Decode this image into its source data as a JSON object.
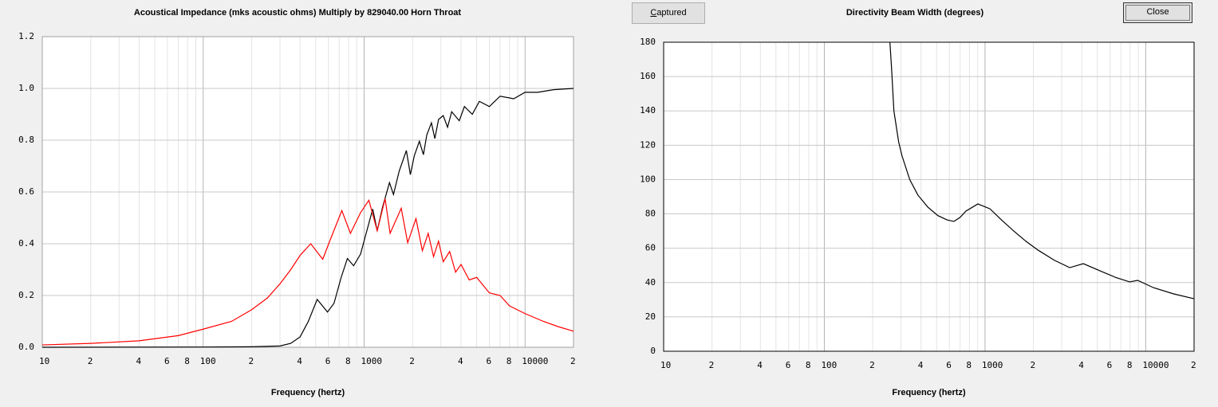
{
  "chart_data": [
    {
      "type": "line",
      "title": "Acoustical Impedance (mks acoustic ohms)   Multiply by 829040.00   Horn Throat",
      "xlabel": "Frequency (hertz)",
      "xscale": "log",
      "xlim": [
        10,
        20000
      ],
      "ylim": [
        0,
        1.2
      ],
      "grid": true,
      "xticks": [
        10,
        {
          "value": 20,
          "label": "2"
        },
        {
          "value": 40,
          "label": "4"
        },
        {
          "value": 60,
          "label": "6"
        },
        {
          "value": 80,
          "label": "8"
        },
        100,
        {
          "value": 200,
          "label": "2"
        },
        {
          "value": 400,
          "label": "4"
        },
        {
          "value": 600,
          "label": "6"
        },
        {
          "value": 800,
          "label": "8"
        },
        1000,
        {
          "value": 2000,
          "label": "2"
        },
        {
          "value": 4000,
          "label": "4"
        },
        {
          "value": 6000,
          "label": "6"
        },
        {
          "value": 8000,
          "label": "8"
        },
        10000,
        {
          "value": 20000,
          "label": "2"
        }
      ],
      "xminor": [
        30,
        50,
        70,
        90,
        300,
        500,
        700,
        900,
        3000,
        5000,
        7000,
        9000
      ],
      "yticks": [
        {
          "value": 0,
          "label": "0.0"
        },
        0.2,
        0.4,
        0.6,
        0.8,
        {
          "value": 1,
          "label": "1.0"
        },
        1.2
      ],
      "series": [
        {
          "color": "#000000",
          "x": [
            10,
            100,
            200,
            300,
            350,
            400,
            450,
            511,
            592,
            650,
            720,
            787,
            860,
            950,
            1050,
            1131,
            1206,
            1300,
            1437,
            1522,
            1650,
            1830,
            1938,
            2050,
            2205,
            2336,
            2450,
            2620,
            2750,
            2900,
            3100,
            3300,
            3500,
            3900,
            4200,
            4700,
            5200,
            6000,
            7000,
            8500,
            10000,
            12000,
            15000,
            20000
          ],
          "values": [
            0,
            0.001,
            0.002,
            0.005,
            0.015,
            0.04,
            0.1,
            0.185,
            0.136,
            0.17,
            0.27,
            0.343,
            0.315,
            0.36,
            0.46,
            0.534,
            0.45,
            0.54,
            0.636,
            0.59,
            0.68,
            0.76,
            0.667,
            0.74,
            0.796,
            0.744,
            0.82,
            0.867,
            0.806,
            0.88,
            0.895,
            0.85,
            0.91,
            0.875,
            0.93,
            0.9,
            0.95,
            0.93,
            0.97,
            0.96,
            0.985,
            0.985,
            0.995,
            1.0
          ]
        },
        {
          "color": "#ff0000",
          "x": [
            10,
            20,
            40,
            70,
            100,
            150,
            200,
            250,
            300,
            350,
            400,
            466,
            553,
            620,
            727,
            822,
            950,
            1070,
            1206,
            1350,
            1450,
            1700,
            1865,
            2100,
            2300,
            2500,
            2700,
            2900,
            3100,
            3400,
            3700,
            4000,
            4500,
            5000,
            6000,
            7000,
            8000,
            10000,
            13000,
            16000,
            20000
          ],
          "values": [
            0.009,
            0.015,
            0.025,
            0.045,
            0.07,
            0.1,
            0.145,
            0.19,
            0.245,
            0.3,
            0.355,
            0.4,
            0.34,
            0.42,
            0.528,
            0.44,
            0.52,
            0.568,
            0.45,
            0.574,
            0.44,
            0.537,
            0.404,
            0.497,
            0.373,
            0.44,
            0.35,
            0.41,
            0.33,
            0.37,
            0.29,
            0.32,
            0.26,
            0.27,
            0.21,
            0.2,
            0.16,
            0.13,
            0.1,
            0.08,
            0.062
          ]
        }
      ]
    },
    {
      "type": "line",
      "title": "Directivity Beam Width (degrees)",
      "xlabel": "Frequency (hertz)",
      "xscale": "log",
      "xlim": [
        10,
        20000
      ],
      "ylim": [
        0,
        180
      ],
      "grid": true,
      "xticks": [
        10,
        {
          "value": 20,
          "label": "2"
        },
        {
          "value": 40,
          "label": "4"
        },
        {
          "value": 60,
          "label": "6"
        },
        {
          "value": 80,
          "label": "8"
        },
        100,
        {
          "value": 200,
          "label": "2"
        },
        {
          "value": 400,
          "label": "4"
        },
        {
          "value": 600,
          "label": "6"
        },
        {
          "value": 800,
          "label": "8"
        },
        1000,
        {
          "value": 2000,
          "label": "2"
        },
        {
          "value": 4000,
          "label": "4"
        },
        {
          "value": 6000,
          "label": "6"
        },
        {
          "value": 8000,
          "label": "8"
        },
        10000,
        {
          "value": 20000,
          "label": "2"
        }
      ],
      "xminor": [
        30,
        50,
        70,
        90,
        300,
        500,
        700,
        900,
        3000,
        5000,
        7000,
        9000
      ],
      "yticks": [
        0,
        20,
        40,
        60,
        80,
        100,
        120,
        140,
        160,
        180
      ],
      "series": [
        {
          "color": "#000000",
          "x": [
            256,
            262,
            271,
            290,
            304,
            340,
            382,
            440,
            509,
            580,
            640,
            700,
            760,
            902,
            1072,
            1250,
            1510,
            1800,
            2130,
            2700,
            3365,
            4090,
            5325,
            6500,
            7940,
            8910,
            11200,
            14930,
            20000
          ],
          "values": [
            180,
            165,
            140,
            122,
            114,
            100,
            91,
            84,
            79,
            76.5,
            75.6,
            78,
            81.6,
            85.8,
            83,
            77,
            70,
            64,
            59,
            53,
            48.7,
            51,
            46.4,
            43,
            40.4,
            41.3,
            37,
            33.4,
            30.6
          ]
        }
      ]
    }
  ],
  "buttons": {
    "captured": "Captured",
    "close": "Close"
  }
}
